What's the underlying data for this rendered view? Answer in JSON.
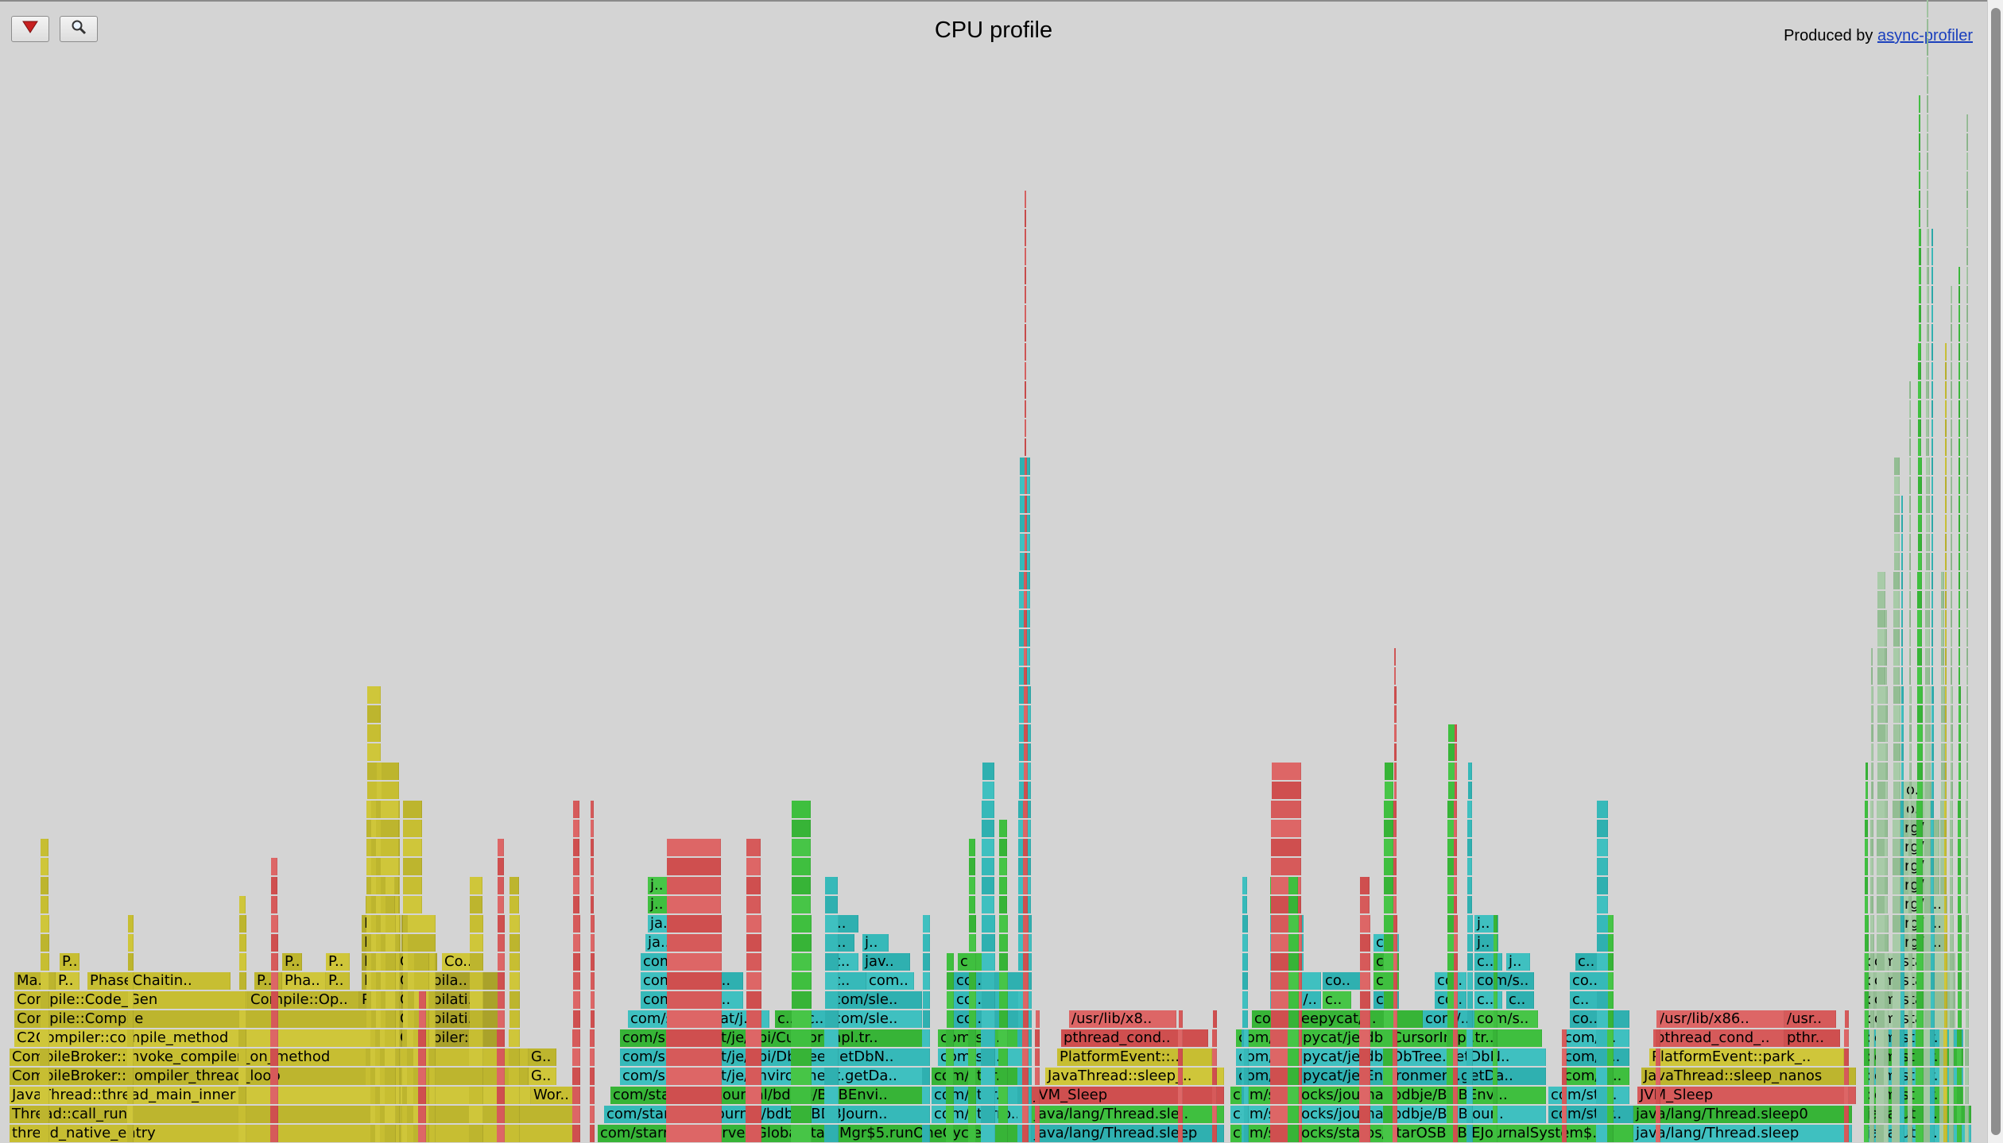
{
  "title": "CPU profile",
  "produced_by": "Produced by",
  "producer_link": "async-profiler",
  "colors": {
    "background": "#d4d4d4",
    "yellow": "#c7be32",
    "yellow_dark": "#b4ac2c",
    "green": "#3fbf3f",
    "teal": "#36b9b9",
    "red": "#d65a5a",
    "sage": "#9ec49e"
  },
  "frames": [
    [
      "thread_native_entry",
      12,
      726,
      0,
      "y"
    ],
    [
      "Thread::call_run",
      12,
      726,
      1,
      "y"
    ],
    [
      "JavaThread::thread_main_inner",
      12,
      668,
      2,
      "y"
    ],
    [
      "Wor..",
      668,
      726,
      2,
      "y"
    ],
    [
      "CompileBroker::compiler_thread_loop",
      12,
      665,
      3,
      "y"
    ],
    [
      "G..",
      665,
      700,
      3,
      "y"
    ],
    [
      "CompileBroker::invoke_compiler_on_method",
      12,
      665,
      4,
      "y"
    ],
    [
      "G..",
      665,
      700,
      4,
      "y"
    ],
    [
      "C2Compiler::compile_method",
      18,
      500,
      5,
      "y"
    ],
    [
      "Compiler::..",
      500,
      632,
      5,
      "yd"
    ],
    [
      "Compile::Compile",
      18,
      500,
      6,
      "y"
    ],
    [
      "Compilati..",
      500,
      632,
      6,
      "yd"
    ],
    [
      "Compile::Code_Gen",
      18,
      312,
      7,
      "y"
    ],
    [
      "Compile::Op..",
      312,
      452,
      7,
      "y"
    ],
    [
      "Pa..",
      452,
      500,
      7,
      "yd"
    ],
    [
      "Compilati..",
      500,
      632,
      7,
      "yd"
    ],
    [
      "Ma..",
      18,
      70,
      8,
      "y"
    ],
    [
      "P..",
      70,
      100,
      8,
      "y"
    ],
    [
      "PhaseChaitin..",
      110,
      290,
      8,
      "y"
    ],
    [
      "P..",
      320,
      355,
      8,
      "y"
    ],
    [
      "Pha..",
      355,
      410,
      8,
      "y"
    ],
    [
      "P..",
      410,
      440,
      8,
      "y"
    ],
    [
      "Pa..",
      455,
      500,
      8,
      "yd"
    ],
    [
      "Compila..",
      500,
      632,
      8,
      "yd"
    ],
    [
      "P..",
      75,
      100,
      9,
      "y"
    ],
    [
      "P..",
      355,
      380,
      9,
      "y"
    ],
    [
      "P..",
      410,
      440,
      9,
      "y"
    ],
    [
      "Pa..",
      455,
      500,
      9,
      "yd"
    ],
    [
      "C..",
      500,
      550,
      9,
      "yd"
    ],
    [
      "Co..",
      556,
      605,
      9,
      "y"
    ],
    [
      "Pa..",
      455,
      500,
      10,
      "yd"
    ],
    [
      "I..",
      505,
      530,
      10,
      "yd"
    ],
    [
      "P..",
      455,
      490,
      11,
      "yd"
    ],
    [
      "I..",
      505,
      535,
      11,
      "yd"
    ],
    [
      "P..",
      460,
      490,
      12,
      "yd"
    ],
    [
      "com/starrocks/server/GlobalStateMgr$5.runOneCycle",
      752,
      1295,
      0,
      "g"
    ],
    [
      "com/starrocks/journal/bdbje/BDBJourn..",
      760,
      1170,
      1,
      "t"
    ],
    [
      "com/starro..",
      1172,
      1295,
      1,
      "t"
    ],
    [
      "com/starrocks/journal/bdbje/BDBEnvi..",
      768,
      1170,
      2,
      "g"
    ],
    [
      "com/star..",
      1172,
      1295,
      2,
      "t"
    ],
    [
      "com/sleepycat/je/Environment.getDa..",
      780,
      1170,
      3,
      "t"
    ],
    [
      "com/star..",
      1172,
      1295,
      3,
      "g"
    ],
    [
      "com/sleepycat/je/dbi/DbTree.getDbN..",
      780,
      1170,
      4,
      "t"
    ],
    [
      "com/sle..",
      1180,
      1290,
      4,
      "t"
    ],
    [
      "com/sleepycat/je/dbi/CursorImpl.tr..",
      780,
      1168,
      5,
      "g"
    ],
    [
      "com/sle..",
      1180,
      1290,
      5,
      "g"
    ],
    [
      "com/sleepycat/j..",
      790,
      968,
      6,
      "t"
    ],
    [
      "c..",
      975,
      1010,
      6,
      "g"
    ],
    [
      "c..",
      1012,
      1045,
      6,
      "t"
    ],
    [
      "com/sle..",
      1045,
      1160,
      6,
      "t"
    ],
    [
      "co..",
      1200,
      1285,
      6,
      "t"
    ],
    [
      "com/s..",
      806,
      880,
      7,
      "t"
    ],
    [
      "co..",
      884,
      935,
      7,
      "t"
    ],
    [
      "com/sle..",
      1045,
      1160,
      7,
      "t"
    ],
    [
      "co..",
      1200,
      1285,
      7,
      "t"
    ],
    [
      "com/s..",
      806,
      880,
      8,
      "t"
    ],
    [
      "co..",
      884,
      935,
      8,
      "t"
    ],
    [
      "c..",
      1045,
      1090,
      8,
      "t"
    ],
    [
      "com..",
      1090,
      1150,
      8,
      "t"
    ],
    [
      "co..",
      1200,
      1285,
      8,
      "t"
    ],
    [
      "com..",
      806,
      880,
      9,
      "t"
    ],
    [
      "c..",
      1045,
      1080,
      9,
      "t"
    ],
    [
      "jav..",
      1085,
      1145,
      9,
      "t"
    ],
    [
      "c..",
      1205,
      1240,
      9,
      "g"
    ],
    [
      "ja..",
      812,
      858,
      10,
      "t"
    ],
    [
      "j..",
      1045,
      1075,
      10,
      "t"
    ],
    [
      "j..",
      1085,
      1118,
      10,
      "t"
    ],
    [
      "ja..",
      815,
      858,
      11,
      "t"
    ],
    [
      "j..",
      1045,
      1080,
      11,
      "t"
    ],
    [
      "j..",
      815,
      845,
      12,
      "g"
    ],
    [
      "j..",
      815,
      845,
      13,
      "g"
    ],
    [
      "java/lang/Thread.sleep",
      1298,
      1540,
      0,
      "t"
    ],
    [
      "java/lang/Thread.sle..",
      1298,
      1540,
      1,
      "g"
    ],
    [
      "JVM_Sleep",
      1298,
      1540,
      2,
      "r"
    ],
    [
      "JavaThread::sleep_..",
      1315,
      1540,
      3,
      "y"
    ],
    [
      "PlatformEvent::..",
      1330,
      1525,
      4,
      "y"
    ],
    [
      "pthread_cond..",
      1335,
      1520,
      5,
      "r"
    ],
    [
      "/usr/lib/x8..",
      1345,
      1480,
      6,
      "r"
    ],
    [
      "com/starrocks/staros/StarOSBDBJEJournalSystem$..",
      1548,
      2055,
      0,
      "g"
    ],
    [
      "com/starrocks/journal/bdbje/BDBJour..",
      1548,
      1945,
      1,
      "t"
    ],
    [
      "com/star..",
      1948,
      2055,
      1,
      "t"
    ],
    [
      "com/starrocks/journal/bdbje/BDBEnvi..",
      1548,
      1945,
      2,
      "g"
    ],
    [
      "com/sta..",
      1948,
      2050,
      2,
      "t"
    ],
    [
      "com/sleepycat/je/Environment.getDa..",
      1555,
      1945,
      3,
      "t"
    ],
    [
      "com/st..",
      1965,
      2050,
      3,
      "g"
    ],
    [
      "com/sleepycat/je/dbi/DbTree.getDbN..",
      1555,
      1945,
      4,
      "t"
    ],
    [
      "com/sl..",
      1965,
      2050,
      4,
      "t"
    ],
    [
      "com/sleepycat/je/dbi/CursorImpl.tr..",
      1555,
      1940,
      5,
      "g"
    ],
    [
      "com/s..",
      1965,
      2050,
      5,
      "t"
    ],
    [
      "com/sleepycat/j..",
      1575,
      1790,
      6,
      "g"
    ],
    [
      "com/..",
      1790,
      1855,
      6,
      "t"
    ],
    [
      "com/s..",
      1855,
      1935,
      6,
      "g"
    ],
    [
      "co..",
      1975,
      2050,
      6,
      "t"
    ],
    [
      "com/..",
      1598,
      1662,
      7,
      "t"
    ],
    [
      "c..",
      1664,
      1700,
      7,
      "g"
    ],
    [
      "c..",
      1728,
      1760,
      7,
      "t"
    ],
    [
      "co..",
      1805,
      1845,
      7,
      "t"
    ],
    [
      "c..",
      1855,
      1890,
      7,
      "t"
    ],
    [
      "c..",
      1895,
      1930,
      7,
      "t"
    ],
    [
      "c..",
      1975,
      2020,
      7,
      "t"
    ],
    [
      "co..",
      1598,
      1662,
      8,
      "t"
    ],
    [
      "co..",
      1664,
      1712,
      8,
      "t"
    ],
    [
      "c..",
      1728,
      1760,
      8,
      "g"
    ],
    [
      "co..",
      1805,
      1845,
      8,
      "t"
    ],
    [
      "com/s..",
      1855,
      1930,
      8,
      "t"
    ],
    [
      "co..",
      1975,
      2030,
      8,
      "t"
    ],
    [
      "co..",
      1598,
      1640,
      9,
      "t"
    ],
    [
      "c..",
      1728,
      1760,
      9,
      "g"
    ],
    [
      "c..",
      1855,
      1890,
      9,
      "t"
    ],
    [
      "j..",
      1895,
      1925,
      9,
      "t"
    ],
    [
      "c..",
      1982,
      2020,
      9,
      "t"
    ],
    [
      "ja..",
      1598,
      1640,
      10,
      "t"
    ],
    [
      "c..",
      1728,
      1760,
      10,
      "t"
    ],
    [
      "j..",
      1855,
      1885,
      10,
      "t"
    ],
    [
      "ja..",
      1598,
      1640,
      11,
      "t"
    ],
    [
      "j..",
      1855,
      1885,
      11,
      "t"
    ],
    [
      "j..",
      1598,
      1630,
      12,
      "g"
    ],
    [
      "j..",
      1598,
      1630,
      13,
      "g"
    ],
    [
      "java/lang/Thread.sleep",
      2055,
      2330,
      0,
      "t"
    ],
    [
      "java/lang/Thread.sleep0",
      2055,
      2330,
      1,
      "g"
    ],
    [
      "JVM_Sleep",
      2060,
      2335,
      2,
      "r"
    ],
    [
      "JavaThread::sleep_nanos",
      2065,
      2335,
      3,
      "y"
    ],
    [
      "PlatformEvent::park_..",
      2075,
      2320,
      4,
      "y"
    ],
    [
      "pthread_cond_..",
      2080,
      2245,
      5,
      "r"
    ],
    [
      "pthr..",
      2245,
      2315,
      5,
      "r"
    ],
    [
      "/usr/lib/x86..",
      2085,
      2245,
      6,
      "r"
    ],
    [
      "/usr..",
      2245,
      2310,
      6,
      "r"
    ],
    [
      "java/util/..",
      2345,
      2480,
      0,
      "t"
    ],
    [
      "java/util/..",
      2345,
      2480,
      1,
      "g"
    ],
    [
      "com/starr..",
      2345,
      2470,
      2,
      "g"
    ],
    [
      "com/starr..",
      2345,
      2470,
      3,
      "t"
    ],
    [
      "com/starr..",
      2345,
      2470,
      4,
      "g"
    ],
    [
      "com/starr..",
      2345,
      2470,
      5,
      "t"
    ],
    [
      "com/sta..",
      2345,
      2460,
      6,
      "s"
    ],
    [
      "com/sta..",
      2345,
      2460,
      7,
      "s"
    ],
    [
      "com/sta..",
      2345,
      2460,
      8,
      "s"
    ],
    [
      "com/sta..",
      2345,
      2460,
      9,
      "s"
    ],
    [
      "org/a..",
      2382,
      2450,
      10,
      "s"
    ],
    [
      "org/a..",
      2382,
      2450,
      11,
      "s"
    ],
    [
      "org/a..",
      2382,
      2450,
      12,
      "s"
    ],
    [
      "org/..",
      2382,
      2440,
      13,
      "s"
    ],
    [
      "org/..",
      2382,
      2440,
      14,
      "s"
    ],
    [
      "org/..",
      2382,
      2440,
      15,
      "s"
    ],
    [
      "org/..",
      2382,
      2440,
      16,
      "s"
    ],
    [
      "o..",
      2395,
      2430,
      17,
      "s"
    ],
    [
      "o..",
      2395,
      2430,
      18,
      "s"
    ]
  ],
  "towers": [
    [
      460,
      20,
      24,
      "y"
    ],
    [
      466,
      38,
      18,
      "y"
    ],
    [
      472,
      30,
      20,
      "y"
    ],
    [
      478,
      25,
      20,
      "y"
    ],
    [
      484,
      14,
      14,
      "y"
    ],
    [
      506,
      26,
      18,
      "y"
    ],
    [
      512,
      36,
      12,
      "y"
    ],
    [
      520,
      20,
      10,
      "y"
    ],
    [
      526,
      10,
      8,
      "r"
    ],
    [
      50,
      12,
      16,
      "y"
    ],
    [
      160,
      8,
      12,
      "y"
    ],
    [
      300,
      10,
      13,
      "y"
    ],
    [
      340,
      10,
      15,
      "r"
    ],
    [
      590,
      18,
      14,
      "y"
    ],
    [
      625,
      10,
      16,
      "r"
    ],
    [
      640,
      14,
      14,
      "y"
    ],
    [
      720,
      10,
      18,
      "r"
    ],
    [
      838,
      70,
      16,
      "r"
    ],
    [
      938,
      20,
      16,
      "r"
    ],
    [
      995,
      26,
      18,
      "g"
    ],
    [
      1037,
      18,
      14,
      "t"
    ],
    [
      1218,
      10,
      16,
      "g"
    ],
    [
      1234,
      18,
      20,
      "t"
    ],
    [
      1256,
      12,
      17,
      "g"
    ],
    [
      1280,
      18,
      36,
      "t"
    ],
    [
      1286,
      8,
      50,
      "r"
    ],
    [
      1160,
      10,
      12,
      "t"
    ],
    [
      1190,
      10,
      10,
      "g"
    ],
    [
      1598,
      40,
      20,
      "r"
    ],
    [
      1620,
      14,
      14,
      "g"
    ],
    [
      1710,
      14,
      14,
      "r"
    ],
    [
      1740,
      14,
      20,
      "g"
    ],
    [
      1752,
      6,
      26,
      "r"
    ],
    [
      1820,
      12,
      22,
      "g"
    ],
    [
      1828,
      6,
      22,
      "r"
    ],
    [
      1845,
      8,
      20,
      "t"
    ],
    [
      1878,
      6,
      12,
      "g"
    ],
    [
      2008,
      16,
      18,
      "t"
    ],
    [
      2022,
      8,
      12,
      "g"
    ],
    [
      1562,
      8,
      14,
      "t"
    ],
    [
      2345,
      6,
      20,
      "g"
    ],
    [
      2360,
      14,
      30,
      "s"
    ],
    [
      2380,
      12,
      36,
      "s"
    ],
    [
      2410,
      10,
      55,
      "g"
    ],
    [
      2420,
      10,
      60,
      "s"
    ],
    [
      2428,
      6,
      48,
      "t"
    ],
    [
      2440,
      8,
      30,
      "s"
    ],
    [
      2452,
      6,
      45,
      "s"
    ],
    [
      2462,
      6,
      46,
      "g"
    ],
    [
      2472,
      5,
      54,
      "s"
    ],
    [
      2400,
      6,
      40,
      "s"
    ],
    [
      2390,
      6,
      34,
      "t"
    ],
    [
      2370,
      6,
      28,
      "s"
    ],
    [
      2352,
      6,
      26,
      "s"
    ],
    [
      2445,
      5,
      42,
      "y"
    ],
    [
      742,
      6,
      18,
      "r"
    ],
    [
      1302,
      6,
      7,
      "r"
    ],
    [
      1482,
      6,
      7,
      "r"
    ],
    [
      1525,
      6,
      7,
      "r"
    ],
    [
      2083,
      6,
      7,
      "r"
    ],
    [
      2320,
      6,
      7,
      "r"
    ],
    [
      1965,
      6,
      6,
      "r"
    ],
    [
      1565,
      6,
      6,
      "t"
    ]
  ]
}
